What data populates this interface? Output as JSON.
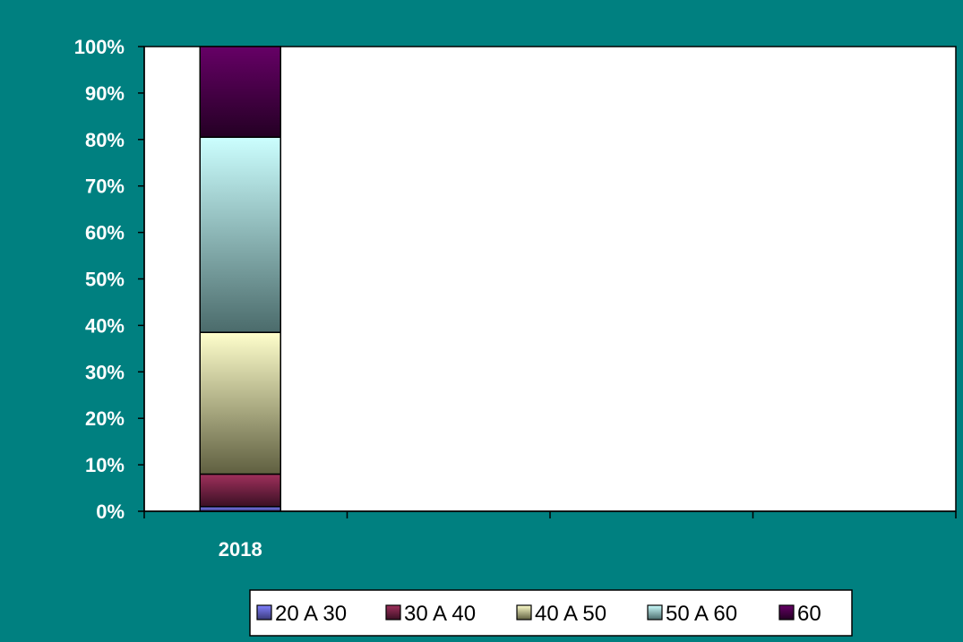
{
  "chart_data": {
    "type": "bar",
    "stacked": "percent",
    "categories": [
      "2018"
    ],
    "series": [
      {
        "name": "20 A 30",
        "values": [
          1
        ],
        "color_top": "#8080ff",
        "color_bottom": "#3a3a78"
      },
      {
        "name": "30 A 40",
        "values": [
          7
        ],
        "color_top": "#a0305c",
        "color_bottom": "#3a1024"
      },
      {
        "name": "40 A 50",
        "values": [
          30.5
        ],
        "color_top": "#ffffcc",
        "color_bottom": "#5f5f40"
      },
      {
        "name": "50 A 60",
        "values": [
          42
        ],
        "color_top": "#ccffff",
        "color_bottom": "#4b6b6b"
      },
      {
        "name": "60",
        "values": [
          19.5
        ],
        "color_top": "#660066",
        "color_bottom": "#240024"
      }
    ],
    "yticks": [
      "0%",
      "10%",
      "20%",
      "30%",
      "40%",
      "50%",
      "60%",
      "70%",
      "80%",
      "90%",
      "100%"
    ],
    "ylim": [
      0,
      100
    ],
    "grid": false,
    "legend_position": "bottom-right",
    "colors": {
      "background": "#008080",
      "plot_area": "#ffffff",
      "axis": "#000000"
    }
  }
}
